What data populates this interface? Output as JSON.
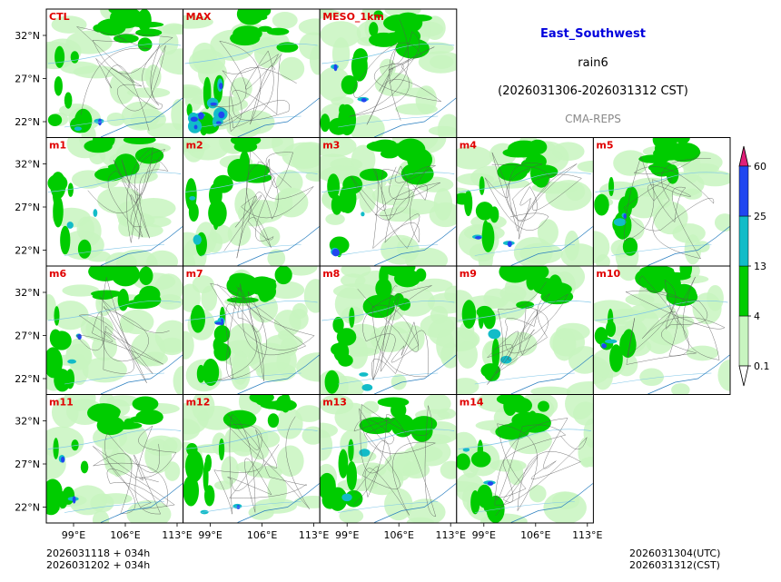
{
  "header": {
    "region": "East_Southwest",
    "variable": "rain6",
    "period": "(2026031306-2026031312 CST)",
    "system": "CMA-REPS"
  },
  "footer": {
    "init_utc": "2026031118  +  034h",
    "init_cst": "2026031202  +  034h",
    "valid_utc": "2026031304(UTC)",
    "valid_cst": "2026031312(CST)"
  },
  "chart_data": {
    "type": "heatmap",
    "title": "East_Southwest rain6",
    "panels": [
      "CTL",
      "MAX",
      "MESO_1km",
      "m1",
      "m2",
      "m3",
      "m4",
      "m5",
      "m6",
      "m7",
      "m8",
      "m9",
      "m10",
      "m11",
      "m12",
      "m13",
      "m14"
    ],
    "x_ticks": [
      "99°E",
      "106°E",
      "113°E"
    ],
    "y_ticks": [
      "32°N",
      "27°N",
      "22°N"
    ],
    "colorbar": {
      "levels": [
        "0.1",
        "4",
        "13",
        "25",
        "60"
      ],
      "colors": [
        "#ffffff",
        "#c8f5c0",
        "#00cc00",
        "#12bcc8",
        "#2046f0",
        "#e01e78"
      ]
    }
  }
}
